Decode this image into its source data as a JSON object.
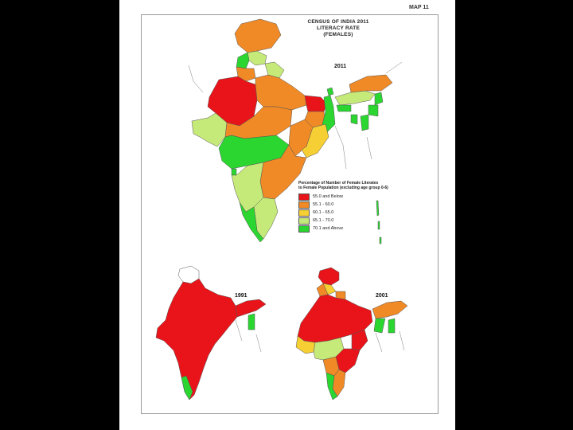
{
  "map_number": "MAP 11",
  "title_lines": [
    "CENSUS OF INDIA 2011",
    "LITERACY RATE",
    "(FEMALES)"
  ],
  "main_year": "2011",
  "inset_years": [
    "1991",
    "2001"
  ],
  "legend": {
    "title_line1": "Percentage of Number of Female Literates",
    "title_line2": "to Female Population (excluding age group 0-6)",
    "items": [
      {
        "label": "55.0 and Below",
        "color": "#e8141a"
      },
      {
        "label": "55.1 - 60.0",
        "color": "#f08a26"
      },
      {
        "label": "60.1 - 65.0",
        "color": "#f6cf34"
      },
      {
        "label": "65.1 - 70.0",
        "color": "#c6ea7a"
      },
      {
        "label": "70.1 and Above",
        "color": "#2bd631"
      }
    ]
  }
}
